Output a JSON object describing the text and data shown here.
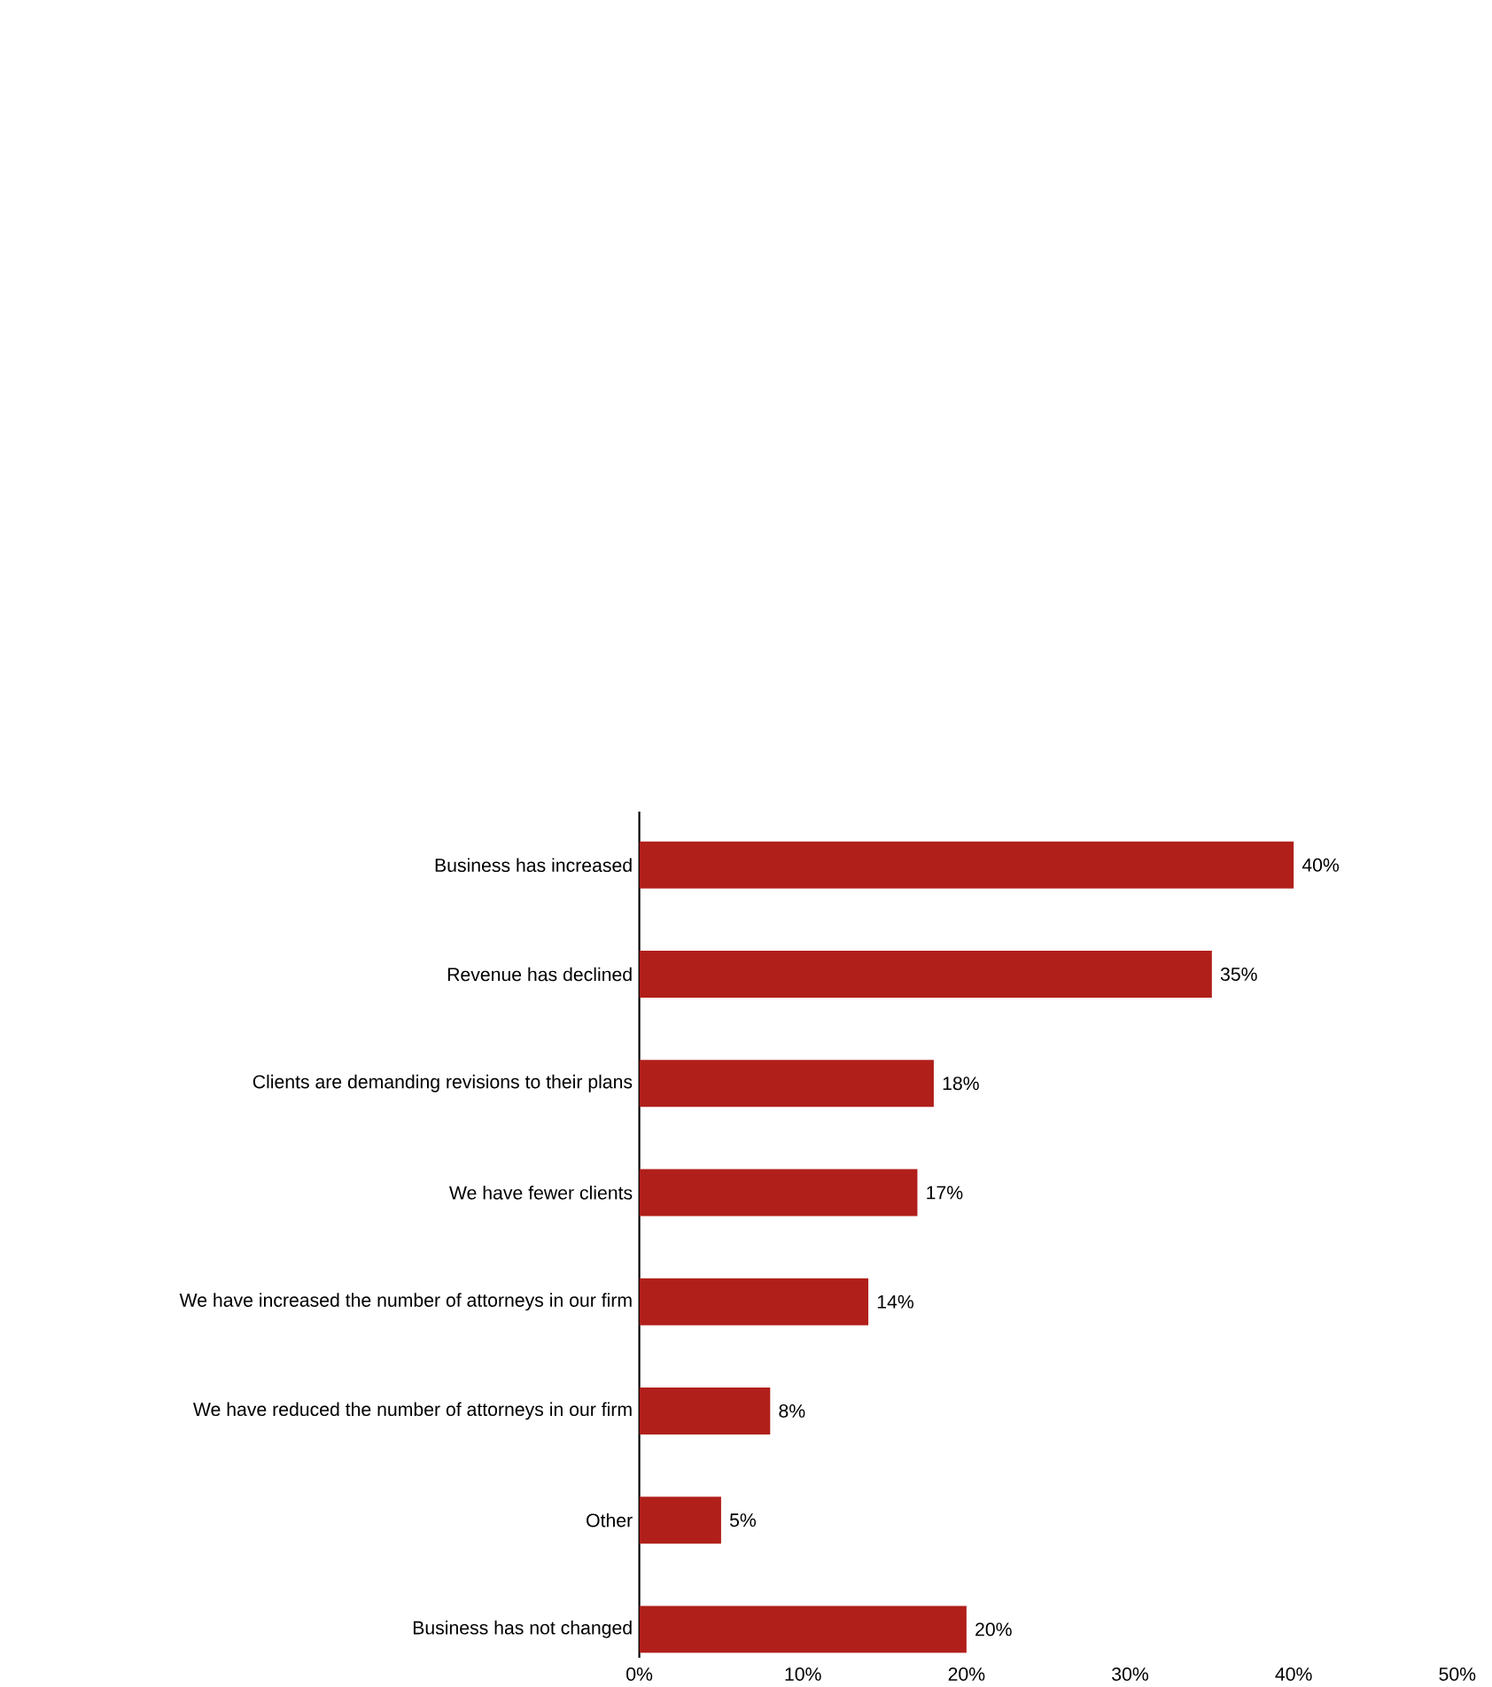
{
  "chart_data": {
    "type": "bar",
    "orientation": "horizontal",
    "categories": [
      "Business has increased",
      "Revenue has declined",
      "Clients are demanding revisions to their plans",
      "We have fewer clients",
      "We have increased the number of attorneys in our firm",
      "We have reduced the number of attorneys in our firm",
      "Other",
      "Business has not changed"
    ],
    "values": [
      40,
      35,
      18,
      17,
      14,
      8,
      5,
      20
    ],
    "value_labels": [
      "40%",
      "35%",
      "18%",
      "17%",
      "14%",
      "8%",
      "5%",
      "20%"
    ],
    "color": "#b01f1a",
    "xlim": [
      0,
      50
    ],
    "xticks": [
      {
        "value": 0,
        "label": "0%"
      },
      {
        "value": 10,
        "label": "10%"
      },
      {
        "value": 20,
        "label": "20%"
      },
      {
        "value": 30,
        "label": "30%"
      },
      {
        "value": 40,
        "label": "40%"
      },
      {
        "value": 50,
        "label": "50%"
      }
    ]
  }
}
